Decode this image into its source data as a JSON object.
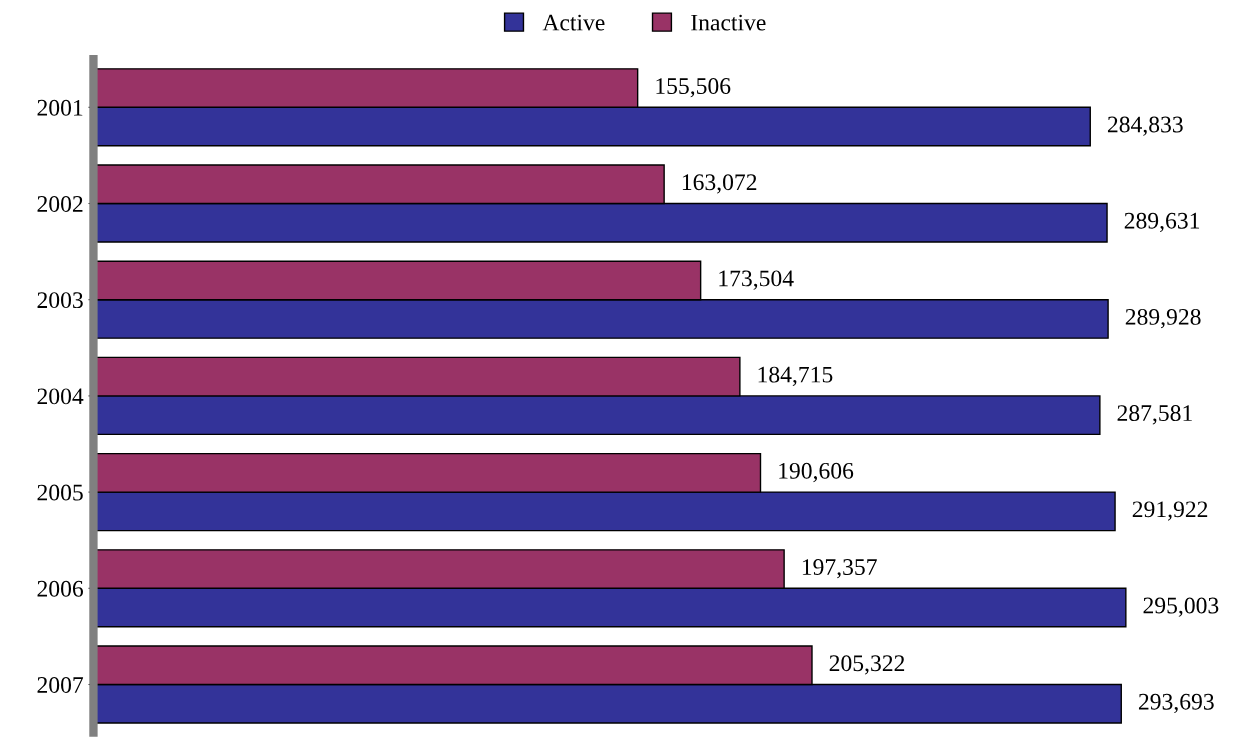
{
  "chart_data": {
    "type": "bar",
    "orientation": "horizontal",
    "categories": [
      "2001",
      "2002",
      "2003",
      "2004",
      "2005",
      "2006",
      "2007"
    ],
    "series": [
      {
        "name": "Active",
        "color": "#333399",
        "values": [
          284833,
          289631,
          289928,
          287581,
          291922,
          295003,
          293693
        ],
        "value_labels": [
          "284,833",
          "289,631",
          "289,928",
          "287,581",
          "291,922",
          "295,003",
          "293,693"
        ]
      },
      {
        "name": "Inactive",
        "color": "#993366",
        "values": [
          155506,
          163072,
          173504,
          184715,
          190606,
          197357,
          205322
        ],
        "value_labels": [
          "155,506",
          "163,072",
          "173,504",
          "184,715",
          "190,606",
          "197,357",
          "205,322"
        ]
      }
    ],
    "legend": "top",
    "grid": false
  }
}
